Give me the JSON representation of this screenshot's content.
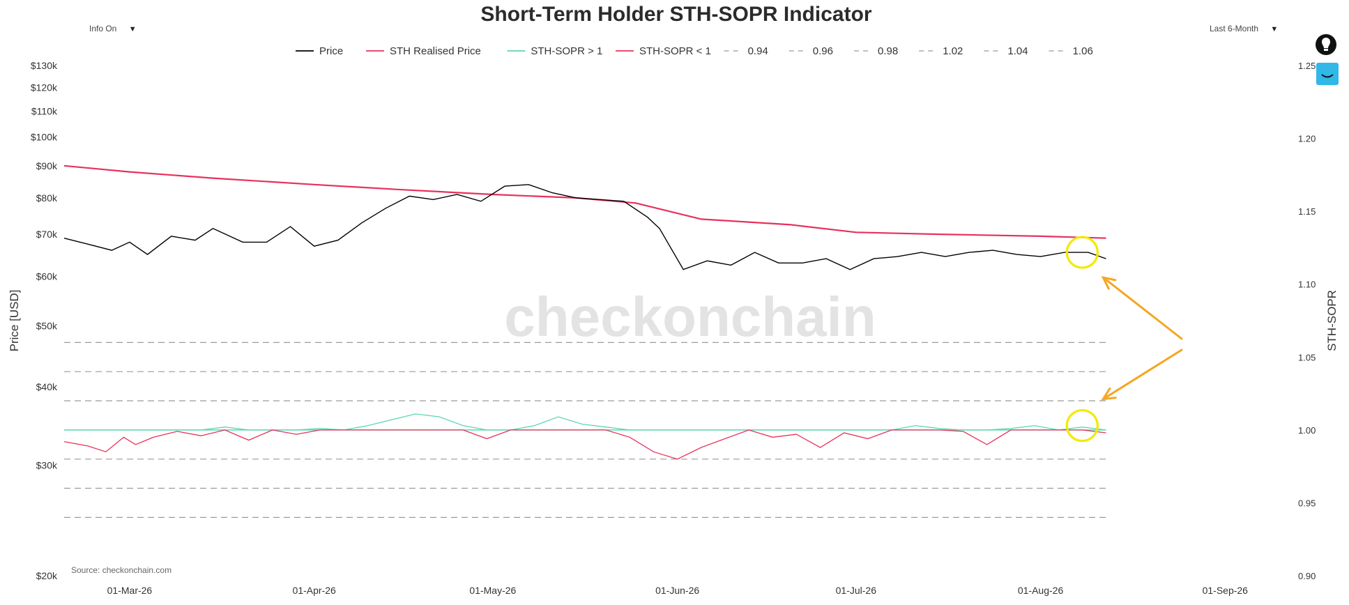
{
  "controls": {
    "info_dropdown": "Info On",
    "range_dropdown": "Last 6-Month"
  },
  "icons": {
    "dropdown_caret": "chevron-down-icon",
    "logo": "checkonchain-logo-icon",
    "toolbar": "chart-tools-icon"
  },
  "colors": {
    "price": "#000000",
    "sth_realised_price": "#e8305c",
    "sopr_above_1": "#5cd6b0",
    "sopr_below_1": "#e8305c",
    "reference_lines": "#9a9a9a",
    "annotation_circle": "#f2ea00",
    "annotation_arrow": "#f5a623",
    "watermark": "#e3e3e3"
  },
  "chart_data": {
    "type": "line",
    "title": "Short-Term Holder STH-SOPR Indicator",
    "watermark": "checkonchain",
    "source": "Source: checkonchain.com",
    "y_left_label": "Price [USD]",
    "y_right_label": "STH-SOPR",
    "y_left_scale": "log",
    "y_left_range": [
      20000,
      130000
    ],
    "y_right_range": [
      0.9,
      1.25
    ],
    "x_range": [
      "2026-02-18",
      "2026-09-06"
    ],
    "x_ticks": [
      {
        "date": "2026-03-01",
        "label": "01-Mar-26"
      },
      {
        "date": "2026-04-01",
        "label": "01-Apr-26"
      },
      {
        "date": "2026-05-01",
        "label": "01-May-26"
      },
      {
        "date": "2026-06-01",
        "label": "01-Jun-26"
      },
      {
        "date": "2026-07-01",
        "label": "01-Jul-26"
      },
      {
        "date": "2026-08-01",
        "label": "01-Aug-26"
      },
      {
        "date": "2026-09-01",
        "label": "01-Sep-26"
      }
    ],
    "y_left_ticks": [
      {
        "value": 20000,
        "label": "$20k"
      },
      {
        "value": 30000,
        "label": "$30k"
      },
      {
        "value": 40000,
        "label": "$40k"
      },
      {
        "value": 50000,
        "label": "$50k"
      },
      {
        "value": 60000,
        "label": "$60k"
      },
      {
        "value": 70000,
        "label": "$70k"
      },
      {
        "value": 80000,
        "label": "$80k"
      },
      {
        "value": 90000,
        "label": "$90k"
      },
      {
        "value": 100000,
        "label": "$100k"
      },
      {
        "value": 110000,
        "label": "$110k"
      },
      {
        "value": 120000,
        "label": "$120k"
      },
      {
        "value": 130000,
        "label": "$130k"
      }
    ],
    "y_right_ticks": [
      {
        "value": 0.9,
        "label": "0.90"
      },
      {
        "value": 0.95,
        "label": "0.95"
      },
      {
        "value": 1.0,
        "label": "1.00"
      },
      {
        "value": 1.05,
        "label": "1.05"
      },
      {
        "value": 1.1,
        "label": "1.10"
      },
      {
        "value": 1.15,
        "label": "1.15"
      },
      {
        "value": 1.2,
        "label": "1.20"
      },
      {
        "value": 1.25,
        "label": "1.25"
      }
    ],
    "legend": [
      {
        "name": "Price",
        "style": "solid",
        "color": "#000000"
      },
      {
        "name": "STH Realised Price",
        "style": "solid",
        "color": "#e8305c"
      },
      {
        "name": "STH-SOPR > 1",
        "style": "solid",
        "color": "#5cd6b0"
      },
      {
        "name": "STH-SOPR < 1",
        "style": "solid",
        "color": "#e8305c"
      },
      {
        "name": "0.94",
        "style": "dashed",
        "color": "#9a9a9a"
      },
      {
        "name": "0.96",
        "style": "dashed",
        "color": "#9a9a9a"
      },
      {
        "name": "0.98",
        "style": "dashed",
        "color": "#9a9a9a"
      },
      {
        "name": "1.02",
        "style": "dashed",
        "color": "#9a9a9a"
      },
      {
        "name": "1.04",
        "style": "dashed",
        "color": "#9a9a9a"
      },
      {
        "name": "1.06",
        "style": "dashed",
        "color": "#9a9a9a"
      }
    ],
    "reference_levels": [
      0.94,
      0.96,
      0.98,
      1.02,
      1.04,
      1.06
    ],
    "series": [
      {
        "name": "Price",
        "axis": "left",
        "x": [
          "2026-02-18",
          "2026-02-22",
          "2026-02-26",
          "2026-03-01",
          "2026-03-04",
          "2026-03-08",
          "2026-03-12",
          "2026-03-15",
          "2026-03-20",
          "2026-03-24",
          "2026-03-28",
          "2026-04-01",
          "2026-04-05",
          "2026-04-09",
          "2026-04-13",
          "2026-04-17",
          "2026-04-21",
          "2026-04-25",
          "2026-04-29",
          "2026-05-03",
          "2026-05-07",
          "2026-05-11",
          "2026-05-15",
          "2026-05-19",
          "2026-05-23",
          "2026-05-27",
          "2026-05-29",
          "2026-06-02",
          "2026-06-06",
          "2026-06-10",
          "2026-06-14",
          "2026-06-18",
          "2026-06-22",
          "2026-06-26",
          "2026-06-30",
          "2026-07-04",
          "2026-07-08",
          "2026-07-12",
          "2026-07-16",
          "2026-07-20",
          "2026-07-24",
          "2026-07-28",
          "2026-08-01",
          "2026-08-05",
          "2026-08-09",
          "2026-08-12"
        ],
        "y": [
          69000,
          67500,
          66000,
          68000,
          65000,
          69500,
          68500,
          71500,
          68000,
          68000,
          72000,
          67000,
          68500,
          73000,
          77000,
          80500,
          79500,
          81000,
          79000,
          83500,
          84000,
          81500,
          80000,
          79500,
          79000,
          74500,
          71500,
          61500,
          63500,
          62500,
          65500,
          63000,
          63000,
          64000,
          61500,
          64000,
          64500,
          65500,
          64500,
          65500,
          66000,
          65000,
          64500,
          65500,
          65500,
          64000
        ]
      },
      {
        "name": "STH Realised Price",
        "axis": "left",
        "x": [
          "2026-02-18",
          "2026-03-01",
          "2026-03-15",
          "2026-04-01",
          "2026-04-15",
          "2026-05-01",
          "2026-05-15",
          "2026-05-25",
          "2026-06-05",
          "2026-06-20",
          "2026-07-01",
          "2026-07-15",
          "2026-08-01",
          "2026-08-12"
        ],
        "y": [
          90000,
          88000,
          86000,
          84000,
          82500,
          81000,
          80000,
          78500,
          74000,
          72500,
          70500,
          70000,
          69500,
          69000
        ]
      },
      {
        "name": "STH-SOPR",
        "axis": "right",
        "x": [
          "2026-02-18",
          "2026-02-22",
          "2026-02-25",
          "2026-02-28",
          "2026-03-02",
          "2026-03-05",
          "2026-03-09",
          "2026-03-13",
          "2026-03-17",
          "2026-03-21",
          "2026-03-25",
          "2026-03-29",
          "2026-04-02",
          "2026-04-06",
          "2026-04-10",
          "2026-04-14",
          "2026-04-18",
          "2026-04-22",
          "2026-04-26",
          "2026-04-30",
          "2026-05-04",
          "2026-05-08",
          "2026-05-12",
          "2026-05-16",
          "2026-05-20",
          "2026-05-24",
          "2026-05-28",
          "2026-06-01",
          "2026-06-05",
          "2026-06-09",
          "2026-06-13",
          "2026-06-17",
          "2026-06-21",
          "2026-06-25",
          "2026-06-29",
          "2026-07-03",
          "2026-07-07",
          "2026-07-11",
          "2026-07-15",
          "2026-07-19",
          "2026-07-23",
          "2026-07-27",
          "2026-07-31",
          "2026-08-04",
          "2026-08-08",
          "2026-08-12"
        ],
        "y": [
          0.992,
          0.989,
          0.985,
          0.995,
          0.99,
          0.995,
          0.999,
          0.996,
          1.002,
          0.993,
          1.0,
          0.997,
          1.001,
          1.0,
          1.003,
          1.007,
          1.011,
          1.009,
          1.003,
          0.994,
          1.0,
          1.003,
          1.009,
          1.004,
          1.002,
          0.995,
          0.985,
          0.98,
          0.988,
          0.994,
          1.0,
          0.995,
          0.997,
          0.988,
          0.998,
          0.994,
          1.0,
          1.003,
          1.001,
          0.999,
          0.99,
          1.001,
          1.003,
          1.0,
          1.002,
          0.998
        ]
      }
    ],
    "annotations": [
      {
        "type": "circle",
        "date": "2026-08-08",
        "axis": "left",
        "value": 65500
      },
      {
        "type": "circle",
        "date": "2026-08-08",
        "axis": "right",
        "value": 1.003
      }
    ]
  }
}
